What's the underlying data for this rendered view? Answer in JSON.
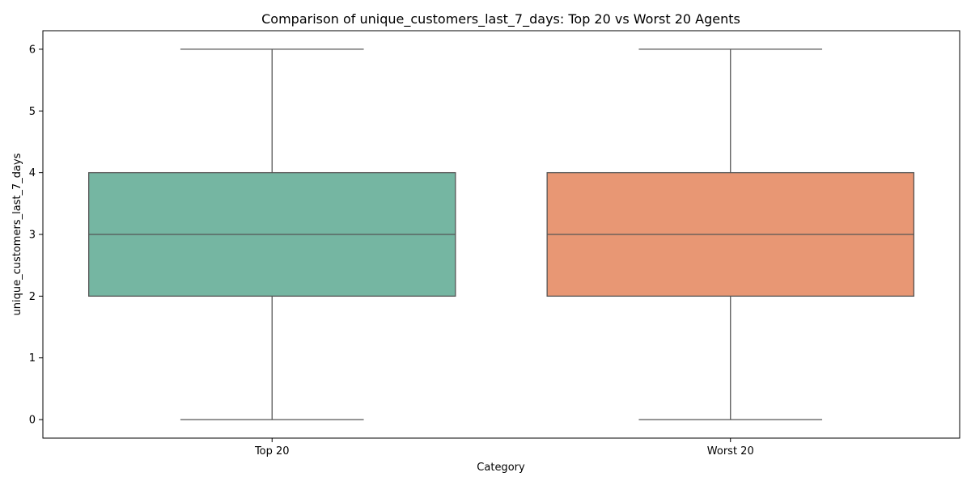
{
  "chart_data": {
    "type": "box",
    "title": "Comparison of unique_customers_last_7_days: Top 20 vs Worst 20 Agents",
    "xlabel": "Category",
    "ylabel": "unique_customers_last_7_days",
    "categories": [
      "Top 20",
      "Worst 20"
    ],
    "boxes": [
      {
        "category": "Top 20",
        "min": 0,
        "q1": 2,
        "median": 3,
        "q3": 4,
        "max": 6,
        "color": "#75b6a2"
      },
      {
        "category": "Worst 20",
        "min": 0,
        "q1": 2,
        "median": 3,
        "q3": 4,
        "max": 6,
        "color": "#e89774"
      }
    ],
    "ylim": [
      -0.3,
      6.3
    ],
    "yticks": [
      0,
      1,
      2,
      3,
      4,
      5,
      6
    ],
    "grid": false,
    "legend": "none",
    "line_color": "#555555"
  }
}
